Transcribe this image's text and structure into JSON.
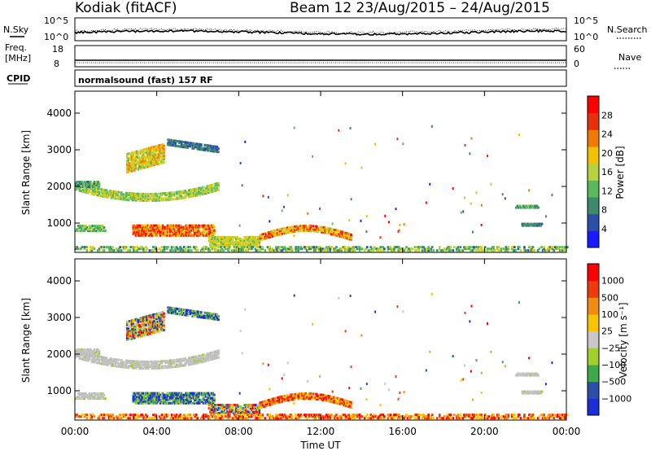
{
  "header": {
    "station": "Kodiak (fitACF)",
    "beam_and_dates": "Beam 12 23/Aug/2015 – 24/Aug/2015"
  },
  "top_panels": {
    "nsky_label": "N.Sky",
    "nsearch_label": "N.Search",
    "nsky_ticks": [
      "10^5",
      "10^0"
    ],
    "nsearch_ticks": [
      "10^5",
      "10^0"
    ],
    "freq_label_1": "Freq.",
    "freq_label_2": "[MHz]",
    "freq_ticks": [
      "18",
      "8"
    ],
    "nave_label": "Nave",
    "nave_ticks": [
      "60",
      "0"
    ],
    "cpid_label": "CPID",
    "cpid_text": "normalsound (fast) 157 RF"
  },
  "colors": {
    "power_scale": [
      "#1a1aff",
      "#2b4fa8",
      "#3c8a6b",
      "#5bb85b",
      "#b7d23c",
      "#f2c200",
      "#f07a00",
      "#e8300a",
      "#ff0000"
    ],
    "velocity_scale": [
      "#ff0000",
      "#ee3b0a",
      "#f38a12",
      "#f8c400",
      "#c8c8c8",
      "#9fd02b",
      "#3ea84a",
      "#2b4fa8",
      "#1c2ed6"
    ],
    "groundscatter": "#c0c0c0"
  },
  "chart_data": [
    {
      "type": "heatmap",
      "name": "power",
      "x_ticks": [
        "00:00",
        "04:00",
        "08:00",
        "12:00",
        "16:00",
        "20:00",
        "00:00"
      ],
      "ylabel": "Slant Range [km]",
      "y_ticks": [
        1000,
        2000,
        3000,
        4000
      ],
      "ylim": [
        200,
        4600
      ],
      "xlim_hours": [
        0,
        24
      ],
      "colorbar_label": "Power [dB]",
      "colorbar_ticks": [
        "4",
        "8",
        "12",
        "16",
        "20",
        "24",
        "28"
      ],
      "colorbar_range": [
        0,
        30
      ]
    },
    {
      "type": "heatmap",
      "name": "velocity",
      "x_ticks": [
        "00:00",
        "04:00",
        "08:00",
        "12:00",
        "16:00",
        "20:00",
        "00:00"
      ],
      "ylabel": "Slant Range [km]",
      "y_ticks": [
        1000,
        2000,
        3000,
        4000
      ],
      "ylim": [
        200,
        4600
      ],
      "xlim_hours": [
        0,
        24
      ],
      "xlabel": "Time UT",
      "colorbar_label": "Velocity [m s⁻¹]",
      "colorbar_ticks": [
        "1000",
        "500",
        "100",
        "25",
        "−25",
        "−100",
        "−500",
        "−1000"
      ]
    }
  ]
}
